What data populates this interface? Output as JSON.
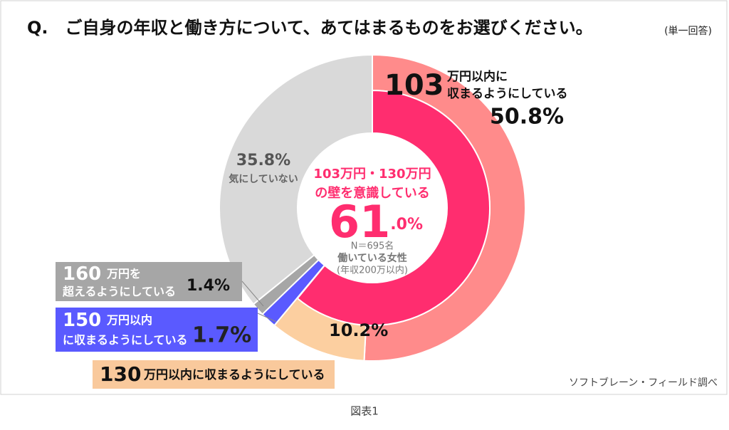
{
  "chart_data": {
    "type": "donut",
    "title": "Q.　ご自身の年収と働き方について、あてはまるものをお選びください。",
    "subtitle": "(単一回答)",
    "categories": [
      "103万円以内に収まるようにしている",
      "130万円以内に収まるようにしている",
      "150万円以内に収まるようにしている",
      "160万円を超えるようにしている",
      "気にしていない"
    ],
    "series": [
      {
        "values": [
          50.8,
          10.2,
          1.7,
          1.4,
          35.8
        ],
        "value_labels": [
          "50.8%",
          "10.2%",
          "1.7%",
          "1.4%",
          "35.8%"
        ],
        "colors": [
          "#ff8b8b",
          "#fccfa0",
          "#5a5aff",
          "#a6a6a6",
          "#d9d9d9"
        ]
      }
    ],
    "inner": {
      "name": "103万円・130万円の壁を意識している",
      "value": 61.0,
      "value_label": "61.0%",
      "color": "#ff2d6f"
    },
    "annotations": [
      "N＝695名",
      "働いている女性",
      "(年収200万以内)"
    ],
    "source": "ソフトブレーン・フィールド調べ",
    "caption": "図表1"
  }
}
